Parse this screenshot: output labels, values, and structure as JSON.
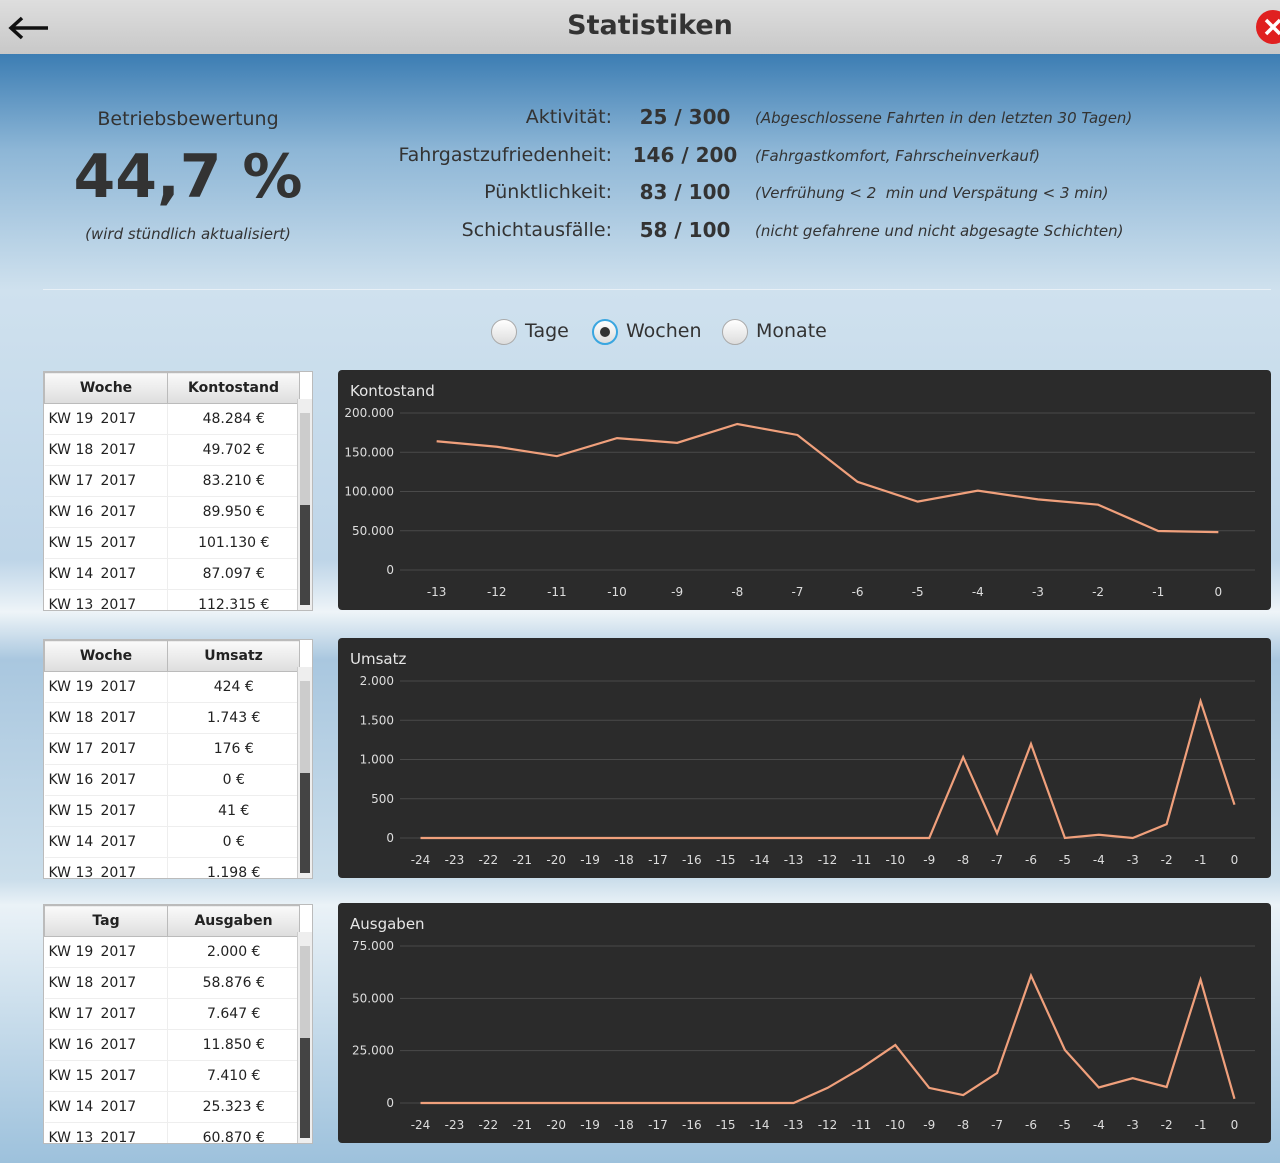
{
  "header": {
    "title": "Statistiken"
  },
  "rating": {
    "label": "Betriebsbewertung",
    "value": "44,7 %",
    "note": "(wird stündlich aktualisiert)"
  },
  "metrics": [
    {
      "label": "Aktivität:",
      "score": "25 / 300",
      "note": "(Abgeschlossene Fahrten in den letzten 30 Tagen)"
    },
    {
      "label": "Fahrgastzufriedenheit:",
      "score": "146 / 200",
      "note": "(Fahrgastkomfort, Fahrscheinverkauf)"
    },
    {
      "label": "Pünktlichkeit:",
      "score": "83 / 100",
      "note": "(Verfrühung < 2  min und Verspätung < 3 min)"
    },
    {
      "label": "Schichtausfälle:",
      "score": "58 / 100",
      "note": "(nicht gefahrene und nicht abgesagte Schichten)"
    }
  ],
  "period_options": [
    {
      "label": "Tage",
      "checked": false
    },
    {
      "label": "Wochen",
      "checked": true
    },
    {
      "label": "Monate",
      "checked": false
    }
  ],
  "tables": [
    {
      "headers": [
        "Woche",
        "Kontostand"
      ],
      "rows": [
        [
          "KW 19",
          "2017",
          "48.284 €"
        ],
        [
          "KW 18",
          "2017",
          "49.702 €"
        ],
        [
          "KW 17",
          "2017",
          "83.210 €"
        ],
        [
          "KW 16",
          "2017",
          "89.950 €"
        ],
        [
          "KW 15",
          "2017",
          "101.130 €"
        ],
        [
          "KW 14",
          "2017",
          "87.097 €"
        ],
        [
          "KW 13",
          "2017",
          "112.315 €"
        ]
      ]
    },
    {
      "headers": [
        "Woche",
        "Umsatz"
      ],
      "rows": [
        [
          "KW 19",
          "2017",
          "424 €"
        ],
        [
          "KW 18",
          "2017",
          "1.743 €"
        ],
        [
          "KW 17",
          "2017",
          "176 €"
        ],
        [
          "KW 16",
          "2017",
          "0 €"
        ],
        [
          "KW 15",
          "2017",
          "41 €"
        ],
        [
          "KW 14",
          "2017",
          "0 €"
        ],
        [
          "KW 13",
          "2017",
          "1.198 €"
        ]
      ]
    },
    {
      "headers": [
        "Tag",
        "Ausgaben"
      ],
      "rows": [
        [
          "KW 19",
          "2017",
          "2.000 €"
        ],
        [
          "KW 18",
          "2017",
          "58.876 €"
        ],
        [
          "KW 17",
          "2017",
          "7.647 €"
        ],
        [
          "KW 16",
          "2017",
          "11.850 €"
        ],
        [
          "KW 15",
          "2017",
          "7.410 €"
        ],
        [
          "KW 14",
          "2017",
          "25.323 €"
        ],
        [
          "KW 13",
          "2017",
          "60.870 €"
        ]
      ]
    }
  ],
  "chart_data": [
    {
      "type": "line",
      "title": "Kontostand",
      "x": [
        -13,
        -12,
        -11,
        -10,
        -9,
        -8,
        -7,
        -6,
        -5,
        -4,
        -3,
        -2,
        -1,
        0
      ],
      "series": [
        {
          "color": "#f0a07c",
          "values": [
            164000,
            157000,
            145000,
            168000,
            162000,
            186000,
            172000,
            112315,
            87097,
            101130,
            89950,
            83210,
            49702,
            48284
          ]
        }
      ],
      "xlim": [
        -13,
        0
      ],
      "ylim": [
        0,
        200000
      ],
      "yticks": [
        0,
        {
          "value": 50000,
          "label": "50.000"
        },
        {
          "value": 100000,
          "label": "100.000"
        },
        {
          "value": 150000,
          "label": "150.000"
        },
        {
          "value": 200000,
          "label": "200.000"
        }
      ],
      "grid": true
    },
    {
      "type": "line",
      "title": "Umsatz",
      "x": [
        -24,
        -23,
        -22,
        -21,
        -20,
        -19,
        -18,
        -17,
        -16,
        -15,
        -14,
        -13,
        -12,
        -11,
        -10,
        -9,
        -8,
        -7,
        -6,
        -5,
        -4,
        -3,
        -2,
        -1,
        0
      ],
      "series": [
        {
          "color": "#f0a07c",
          "values": [
            0,
            0,
            0,
            0,
            0,
            0,
            0,
            0,
            0,
            0,
            0,
            0,
            0,
            0,
            0,
            0,
            1030,
            60,
            1198,
            0,
            41,
            0,
            176,
            1743,
            424
          ]
        }
      ],
      "xlim": [
        -24,
        0
      ],
      "ylim": [
        0,
        2000
      ],
      "yticks": [
        0,
        500,
        {
          "value": 1000,
          "label": "1.000"
        },
        {
          "value": 1500,
          "label": "1.500"
        },
        {
          "value": 2000,
          "label": "2.000"
        }
      ],
      "grid": true
    },
    {
      "type": "line",
      "title": "Ausgaben",
      "x": [
        -24,
        -23,
        -22,
        -21,
        -20,
        -19,
        -18,
        -17,
        -16,
        -15,
        -14,
        -13,
        -12,
        -11,
        -10,
        -9,
        -8,
        -7,
        -6,
        -5,
        -4,
        -3,
        -2,
        -1,
        0
      ],
      "series": [
        {
          "color": "#f0a07c",
          "values": [
            0,
            0,
            0,
            0,
            0,
            0,
            0,
            0,
            0,
            0,
            0,
            0,
            7200,
            16700,
            27700,
            7200,
            3800,
            14300,
            60870,
            25323,
            7410,
            11850,
            7647,
            58876,
            2000
          ]
        }
      ],
      "xlim": [
        -24,
        0
      ],
      "ylim": [
        0,
        75000
      ],
      "yticks": [
        0,
        {
          "value": 25000,
          "label": "25.000"
        },
        {
          "value": 50000,
          "label": "50.000"
        },
        {
          "value": 75000,
          "label": "75.000"
        }
      ],
      "grid": true
    }
  ]
}
